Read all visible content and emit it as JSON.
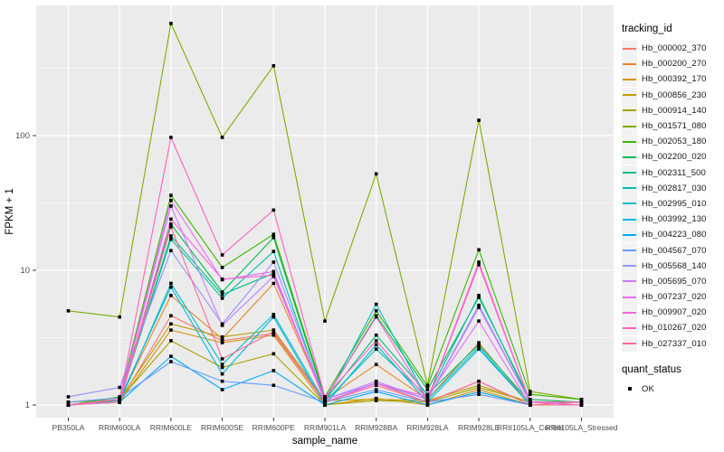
{
  "colors": {
    "panel_bg": "#EBEBEB",
    "grid": "#FFFFFF",
    "axis_text": "#4D4D4D",
    "title_text": "#000000",
    "tick_mark": "#333333",
    "legend_key_bg": "#F2F2F2",
    "point": "#000000"
  },
  "chart_data": {
    "type": "line",
    "title": "",
    "xlabel": "sample_name",
    "ylabel": "FPKM + 1",
    "y_scale": "log10",
    "y_ticks": [
      1,
      10,
      100
    ],
    "y_tick_labels": [
      "1",
      "10",
      "100"
    ],
    "y_minor_ticks": [
      3.1623,
      31.623,
      316.23
    ],
    "ylim_log": [
      -0.095,
      2.97
    ],
    "grid": true,
    "legend_position": "right",
    "legend_title": "tracking_id",
    "legend2_title": "quant_status",
    "legend2_items": [
      {
        "label": "OK",
        "marker": "black-square"
      }
    ],
    "point_marker": "square",
    "categories": [
      "PB350LA",
      "RRIM600LA",
      "RRIM600LE",
      "RRIM600SE",
      "RRIM600PE",
      "RRIM901LA",
      "RRIM928BA",
      "RRIM928LA",
      "RRIM928LE",
      "RRII105LA_Control",
      "RRII105LA_Stressed"
    ],
    "series": [
      {
        "name": "Hb_000002_370",
        "color": "#F8766D",
        "values": [
          1.0,
          1.05,
          4.6,
          3.0,
          3.4,
          1.05,
          1.45,
          1.05,
          1.5,
          1.0,
          1.0
        ]
      },
      {
        "name": "Hb_000200_270",
        "color": "#E88526",
        "values": [
          1.0,
          1.1,
          6.5,
          3.1,
          8.0,
          1.1,
          2.0,
          1.1,
          2.9,
          1.0,
          1.05
        ]
      },
      {
        "name": "Hb_000392_170",
        "color": "#D39200",
        "values": [
          1.0,
          1.05,
          3.6,
          2.9,
          3.3,
          1.0,
          1.12,
          1.0,
          1.3,
          1.0,
          1.0
        ]
      },
      {
        "name": "Hb_000856_230",
        "color": "#BF9C00",
        "values": [
          1.0,
          1.1,
          4.0,
          3.2,
          3.6,
          1.08,
          1.1,
          1.08,
          1.4,
          1.05,
          1.05
        ]
      },
      {
        "name": "Hb_000914_140",
        "color": "#A6A400",
        "values": [
          1.05,
          1.1,
          3.0,
          1.9,
          2.4,
          1.0,
          1.08,
          1.05,
          1.35,
          1.05,
          1.05
        ]
      },
      {
        "name": "Hb_001571_080",
        "color": "#7CAE00",
        "values": [
          5.0,
          4.5,
          680,
          97,
          330,
          4.2,
          52,
          1.4,
          130,
          1.26,
          1.1
        ]
      },
      {
        "name": "Hb_002053_180",
        "color": "#39B600",
        "values": [
          1.0,
          1.15,
          36,
          10.5,
          18.5,
          1.15,
          5.0,
          1.38,
          14.2,
          1.2,
          1.1
        ]
      },
      {
        "name": "Hb_002200_020",
        "color": "#00BB4E",
        "values": [
          1.0,
          1.1,
          22,
          6.9,
          17.5,
          1.1,
          4.6,
          1.3,
          6.3,
          1.1,
          1.05
        ]
      },
      {
        "name": "Hb_002311_500",
        "color": "#00BF7D",
        "values": [
          1.0,
          1.08,
          18,
          6.6,
          9.5,
          1.08,
          3.3,
          1.2,
          2.8,
          1.05,
          1.05
        ]
      },
      {
        "name": "Hb_002817_030",
        "color": "#00C1A7",
        "values": [
          1.0,
          1.1,
          17,
          6.2,
          13.8,
          1.05,
          2.6,
          1.15,
          6.5,
          1.05,
          1.05
        ]
      },
      {
        "name": "Hb_002995_010",
        "color": "#00BFC4",
        "values": [
          1.0,
          1.05,
          8.0,
          2.0,
          4.7,
          1.05,
          5.6,
          1.1,
          2.7,
          1.0,
          1.0
        ]
      },
      {
        "name": "Hb_003992_130",
        "color": "#00B8E5",
        "values": [
          1.0,
          1.1,
          7.5,
          1.7,
          4.5,
          1.0,
          2.8,
          1.05,
          2.6,
          1.0,
          1.0
        ]
      },
      {
        "name": "Hb_004223_080",
        "color": "#00ACFC",
        "values": [
          1.0,
          1.05,
          2.3,
          1.3,
          1.8,
          1.0,
          1.26,
          1.0,
          1.25,
          1.0,
          1.0
        ]
      },
      {
        "name": "Hb_004567_070",
        "color": "#619CFF",
        "values": [
          1.05,
          1.13,
          2.1,
          1.5,
          1.4,
          1.05,
          1.3,
          1.05,
          1.2,
          1.0,
          1.0
        ]
      },
      {
        "name": "Hb_005568_140",
        "color": "#9590FF",
        "values": [
          1.15,
          1.35,
          14,
          4.0,
          11.5,
          1.1,
          1.45,
          1.1,
          5.5,
          1.05,
          1.05
        ]
      },
      {
        "name": "Hb_005695_070",
        "color": "#C77CFF",
        "values": [
          1.0,
          1.1,
          30,
          3.9,
          9.0,
          1.1,
          1.5,
          1.1,
          5.3,
          1.05,
          1.0
        ]
      },
      {
        "name": "Hb_007237_020",
        "color": "#E76BF3",
        "values": [
          1.0,
          1.1,
          33,
          8.5,
          9.8,
          1.05,
          1.45,
          1.15,
          4.2,
          1.0,
          1.0
        ]
      },
      {
        "name": "Hb_009907_020",
        "color": "#FA62DB",
        "values": [
          1.0,
          1.05,
          24,
          8.6,
          9.2,
          1.1,
          4.5,
          1.1,
          11.5,
          1.05,
          1.0
        ]
      },
      {
        "name": "Hb_010267_020",
        "color": "#FF61C1",
        "values": [
          1.0,
          1.1,
          97,
          13,
          28,
          1.15,
          3.0,
          1.1,
          11.0,
          1.05,
          1.05
        ]
      },
      {
        "name": "Hb_027337_010",
        "color": "#FF699C",
        "values": [
          1.0,
          1.05,
          21,
          2.2,
          3.5,
          1.05,
          1.4,
          1.05,
          1.5,
          1.0,
          1.0
        ]
      }
    ]
  }
}
